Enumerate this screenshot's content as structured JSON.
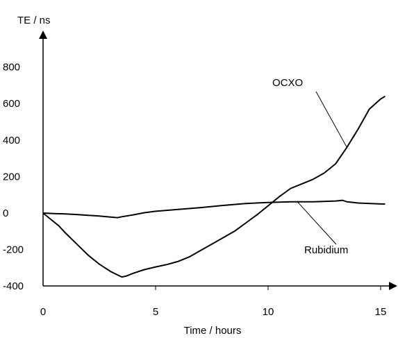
{
  "chart_data": {
    "type": "line",
    "title": "",
    "xlabel": "Time / hours",
    "ylabel": "TE / ns",
    "xlim": [
      0,
      15.6
    ],
    "ylim": [
      -400,
      1000
    ],
    "x_ticks": [
      {
        "value": 0,
        "label": "0"
      },
      {
        "value": 5,
        "label": "5"
      },
      {
        "value": 10,
        "label": "10"
      },
      {
        "value": 15,
        "label": "15"
      }
    ],
    "y_ticks": [
      {
        "value": -400,
        "label": "-400"
      },
      {
        "value": -200,
        "label": "-200"
      },
      {
        "value": 0,
        "label": "0"
      },
      {
        "value": 200,
        "label": "200"
      },
      {
        "value": 400,
        "label": "400"
      },
      {
        "value": 600,
        "label": "600"
      },
      {
        "value": 800,
        "label": "800"
      }
    ],
    "grid": false,
    "legend": "none",
    "series": [
      {
        "name": "OCXO",
        "color": "#000000",
        "points": [
          [
            0,
            0
          ],
          [
            0.3,
            -30
          ],
          [
            0.7,
            -70
          ],
          [
            1.0,
            -110
          ],
          [
            1.5,
            -170
          ],
          [
            2.0,
            -230
          ],
          [
            2.5,
            -280
          ],
          [
            3.0,
            -320
          ],
          [
            3.5,
            -350
          ],
          [
            3.7,
            -345
          ],
          [
            4.0,
            -330
          ],
          [
            4.5,
            -310
          ],
          [
            5.0,
            -295
          ],
          [
            5.5,
            -282
          ],
          [
            6.0,
            -265
          ],
          [
            6.5,
            -240
          ],
          [
            7.0,
            -205
          ],
          [
            7.5,
            -170
          ],
          [
            8.0,
            -135
          ],
          [
            8.5,
            -100
          ],
          [
            9.0,
            -55
          ],
          [
            9.5,
            -10
          ],
          [
            10.0,
            40
          ],
          [
            10.5,
            90
          ],
          [
            11.0,
            135
          ],
          [
            11.5,
            160
          ],
          [
            12.0,
            185
          ],
          [
            12.5,
            220
          ],
          [
            13.0,
            270
          ],
          [
            13.5,
            360
          ],
          [
            14.0,
            460
          ],
          [
            14.5,
            570
          ],
          [
            15.0,
            625
          ],
          [
            15.2,
            640
          ]
        ]
      },
      {
        "name": "Rubidium",
        "color": "#000000",
        "points": [
          [
            0,
            0
          ],
          [
            0.5,
            -3
          ],
          [
            1.0,
            -5
          ],
          [
            1.5,
            -8
          ],
          [
            2.0,
            -12
          ],
          [
            2.5,
            -16
          ],
          [
            3.0,
            -22
          ],
          [
            3.3,
            -25
          ],
          [
            3.5,
            -20
          ],
          [
            4.0,
            -10
          ],
          [
            4.5,
            2
          ],
          [
            5.0,
            10
          ],
          [
            6.0,
            20
          ],
          [
            7.0,
            30
          ],
          [
            8.0,
            42
          ],
          [
            9.0,
            52
          ],
          [
            10.0,
            58
          ],
          [
            11.0,
            62
          ],
          [
            12.0,
            62
          ],
          [
            13.0,
            66
          ],
          [
            13.3,
            70
          ],
          [
            13.5,
            62
          ],
          [
            14.0,
            55
          ],
          [
            15.0,
            50
          ],
          [
            15.2,
            50
          ]
        ]
      }
    ],
    "annotations": [
      {
        "text": "OCXO",
        "series": "OCXO",
        "at_x": 13.5
      },
      {
        "text": "Rubidium",
        "series": "Rubidium",
        "at_x": 11.3
      }
    ]
  }
}
